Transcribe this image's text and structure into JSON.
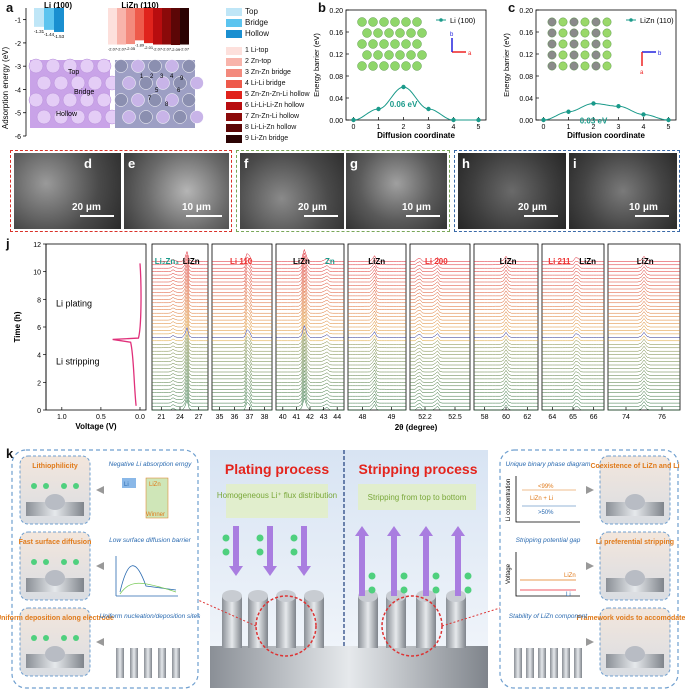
{
  "panel_labels": {
    "a": "a",
    "b": "b",
    "c": "c",
    "d": "d",
    "e": "e",
    "f": "f",
    "g": "g",
    "h": "h",
    "i": "i",
    "j": "j",
    "k": "k"
  },
  "panel_a": {
    "ylabel": "Adsorption energy (eV)",
    "yticks": [
      "-1",
      "-2",
      "-3",
      "-4",
      "-5",
      "-6"
    ],
    "li_title": "Li (100)",
    "lizn_title": "LiZn (110)",
    "li_values": [
      "-1.31",
      "-1.44",
      "-1.53"
    ],
    "lizn_values": [
      "-2.07",
      "-2.07",
      "-2.05",
      "-1.89",
      "-2.01",
      "-2.07",
      "-2.07",
      "-2.09",
      "-2.07"
    ],
    "legend_li": [
      "Top",
      "Bridge",
      "Hollow"
    ],
    "legend_lizn": [
      "1 Li-top",
      "2 Zn-top",
      "3 Zn-Zn bridge",
      "4 Li-Li bridge",
      "5 Zn-Zn-Zn-Li hollow",
      "6 Li-Li-Li-Zn hollow",
      "7 Zn-Zn-Li hollow",
      "8 Li-Li-Zn hollow",
      "9 Li-Zn bridge"
    ],
    "li_colors": [
      "#bfe6f7",
      "#5cc4ef",
      "#1a8fd0"
    ],
    "lizn_colors": [
      "#fde0dc",
      "#f8b4ab",
      "#f38a7d",
      "#ee5a4b",
      "#e0231c",
      "#b80d0f",
      "#8b0a0a",
      "#5c0606",
      "#2b0303"
    ],
    "site_labels": [
      "Top",
      "Bridge",
      "Hollow"
    ]
  },
  "panel_b": {
    "title": "Li (100)",
    "ylabel": "Energy barrier (eV)",
    "xlabel": "Diffusion coordinate",
    "yticks": [
      "0.00",
      "0.04",
      "0.08",
      "0.12",
      "0.16",
      "0.20"
    ],
    "xticks": [
      "0",
      "1",
      "2",
      "3",
      "4",
      "5"
    ],
    "annotation": "0.06 eV",
    "axis_a": "a",
    "axis_b": "b"
  },
  "chart_data": [
    {
      "type": "line",
      "title": "Li (100)",
      "xlabel": "Diffusion coordinate",
      "ylabel": "Energy barrier (eV)",
      "x": [
        0,
        1,
        2,
        3,
        4,
        5
      ],
      "y": [
        0.0,
        0.02,
        0.06,
        0.02,
        0.0,
        0.0
      ],
      "xlim": [
        -0.3,
        5.3
      ],
      "ylim": [
        0,
        0.2
      ],
      "series_color": "#1a9a8a"
    },
    {
      "type": "line",
      "title": "LiZn (110)",
      "xlabel": "Diffusion coordinate",
      "ylabel": "Energy barrier (eV)",
      "x": [
        0,
        1,
        2,
        3,
        4,
        5
      ],
      "y": [
        0.0,
        0.015,
        0.03,
        0.025,
        0.01,
        0.0
      ],
      "xlim": [
        -0.3,
        5.3
      ],
      "ylim": [
        0,
        0.2
      ],
      "series_color": "#1a9a8a"
    }
  ],
  "panel_c": {
    "title": "LiZn (110)",
    "ylabel": "Energy barrier (eV)",
    "xlabel": "Diffusion coordinate",
    "yticks": [
      "0.00",
      "0.04",
      "0.08",
      "0.12",
      "0.16",
      "0.20"
    ],
    "xticks": [
      "0",
      "1",
      "2",
      "3",
      "4",
      "5"
    ],
    "annotation": "0.03 eV",
    "axis_a": "a",
    "axis_b": "b"
  },
  "sem": {
    "d": "20 μm",
    "e": "10 μm",
    "f": "20 μm",
    "g": "10 μm",
    "h": "20 μm",
    "i": "10 μm"
  },
  "panel_j": {
    "ylabel": "Time (h)",
    "yticks": [
      "0",
      "2",
      "4",
      "6",
      "8",
      "10",
      "12"
    ],
    "voltage_label": "Voltage (V)",
    "voltage_ticks": [
      "1.0",
      "0.5",
      "0.0"
    ],
    "plating_label": "Li plating",
    "stripping_label": "Li stripping",
    "xlabel": "2θ (degree)",
    "peak_labels": [
      "Li₂Zn₃",
      "LiZn",
      "Li 110",
      "LiZn",
      "Zn",
      "LiZn",
      "Li 200",
      "LiZn",
      "Li 211",
      "LiZn",
      "LiZn"
    ],
    "segments": [
      {
        "ticks": [
          "21",
          "24",
          "27"
        ]
      },
      {
        "ticks": [
          "35",
          "36",
          "37",
          "38"
        ]
      },
      {
        "ticks": [
          "40",
          "41",
          "42",
          "43",
          "44"
        ]
      },
      {
        "ticks": [
          "48",
          "49"
        ]
      },
      {
        "ticks": [
          "52.2",
          "52.5"
        ]
      },
      {
        "ticks": [
          "58",
          "60",
          "62"
        ]
      },
      {
        "ticks": [
          "64",
          "65",
          "66"
        ]
      },
      {
        "ticks": [
          "74",
          "76"
        ]
      }
    ]
  },
  "panel_k": {
    "plating_title": "Plating process",
    "stripping_title": "Stripping process",
    "plating_flux": "Homogeneous Li⁺ flux distribution",
    "stripping_flux": "Stripping from top to bottom",
    "left_cards": [
      "Lithiophilicity",
      "Fast surface diffusion",
      "Uniform deposition along electrode"
    ],
    "left_notes": [
      "Negative Li absorption erngy",
      "Low surface diffusion barrier",
      "Uniform nucleation/deposition sites"
    ],
    "bar_labels": [
      "Li",
      "LiZn",
      "Winner"
    ],
    "right_cards": [
      "Coexistence of LiZn and Li",
      "Li preferential stripping",
      "Framework voids to accomodate Li"
    ],
    "right_notes": [
      "Unique binary phase diagram",
      "Stripping potential gap",
      "Stability of LiZn component"
    ],
    "phase_labels": [
      "<99%",
      "LiZn +  Li",
      ">50%"
    ],
    "phase_ylabel": "Li concentration",
    "voltage_ylabel": "Voltage",
    "voltage_lines": [
      "LiZn",
      "Li"
    ]
  }
}
